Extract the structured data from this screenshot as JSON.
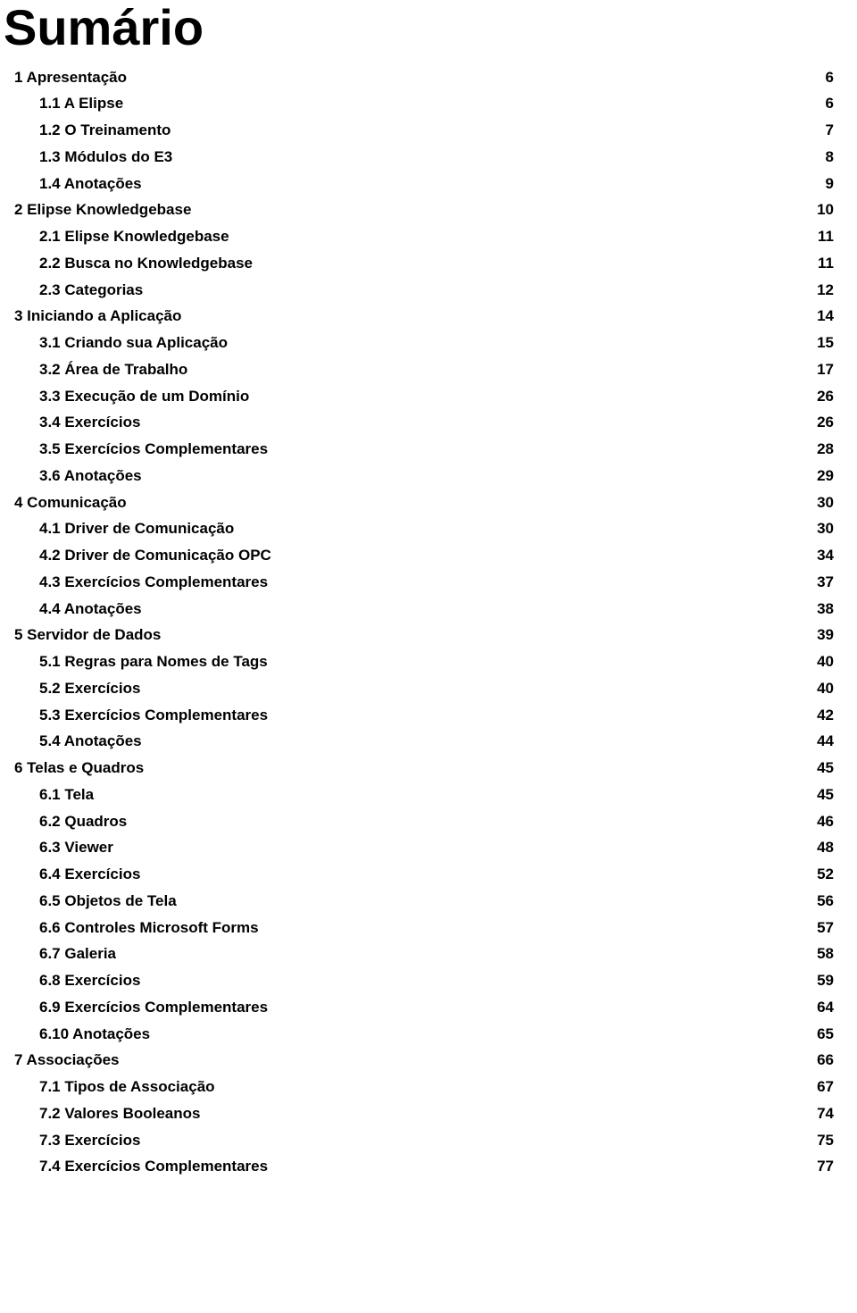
{
  "title": "Sumário",
  "title_fontsize": 56,
  "toc_fontsize": 17,
  "background_color": "#ffffff",
  "text_color": "#000000",
  "entries": [
    {
      "level": 0,
      "label": "1 Apresentação",
      "page": "6"
    },
    {
      "level": 1,
      "label": "1.1 A Elipse",
      "page": "6"
    },
    {
      "level": 1,
      "label": "1.2 O Treinamento",
      "page": "7"
    },
    {
      "level": 1,
      "label": "1.3 Módulos do E3",
      "page": "8"
    },
    {
      "level": 1,
      "label": "1.4 Anotações",
      "page": "9"
    },
    {
      "level": 0,
      "label": "2 Elipse Knowledgebase",
      "page": "10"
    },
    {
      "level": 1,
      "label": "2.1 Elipse Knowledgebase",
      "page": "11"
    },
    {
      "level": 1,
      "label": "2.2 Busca no Knowledgebase",
      "page": "11"
    },
    {
      "level": 1,
      "label": "2.3 Categorias",
      "page": "12"
    },
    {
      "level": 0,
      "label": "3 Iniciando a Aplicação",
      "page": "14"
    },
    {
      "level": 1,
      "label": "3.1 Criando sua Aplicação",
      "page": "15"
    },
    {
      "level": 1,
      "label": "3.2 Área de Trabalho",
      "page": "17"
    },
    {
      "level": 1,
      "label": "3.3 Execução de um Domínio",
      "page": "26"
    },
    {
      "level": 1,
      "label": "3.4 Exercícios",
      "page": "26"
    },
    {
      "level": 1,
      "label": "3.5 Exercícios Complementares",
      "page": "28"
    },
    {
      "level": 1,
      "label": "3.6 Anotações",
      "page": "29"
    },
    {
      "level": 0,
      "label": "4 Comunicação",
      "page": "30"
    },
    {
      "level": 1,
      "label": "4.1 Driver de Comunicação",
      "page": "30"
    },
    {
      "level": 1,
      "label": "4.2 Driver de Comunicação OPC",
      "page": "34"
    },
    {
      "level": 1,
      "label": "4.3 Exercícios Complementares",
      "page": "37"
    },
    {
      "level": 1,
      "label": "4.4 Anotações",
      "page": "38"
    },
    {
      "level": 0,
      "label": "5 Servidor de Dados",
      "page": "39"
    },
    {
      "level": 1,
      "label": "5.1 Regras para Nomes de Tags",
      "page": "40"
    },
    {
      "level": 1,
      "label": "5.2 Exercícios",
      "page": "40"
    },
    {
      "level": 1,
      "label": "5.3 Exercícios Complementares",
      "page": "42"
    },
    {
      "level": 1,
      "label": "5.4 Anotações",
      "page": "44"
    },
    {
      "level": 0,
      "label": "6 Telas e Quadros",
      "page": "45"
    },
    {
      "level": 1,
      "label": "6.1 Tela",
      "page": "45"
    },
    {
      "level": 1,
      "label": "6.2 Quadros",
      "page": "46"
    },
    {
      "level": 1,
      "label": "6.3 Viewer",
      "page": "48"
    },
    {
      "level": 1,
      "label": "6.4 Exercícios",
      "page": "52"
    },
    {
      "level": 1,
      "label": "6.5 Objetos de Tela",
      "page": "56"
    },
    {
      "level": 1,
      "label": "6.6 Controles Microsoft Forms",
      "page": "57"
    },
    {
      "level": 1,
      "label": "6.7 Galeria",
      "page": "58"
    },
    {
      "level": 1,
      "label": "6.8 Exercícios",
      "page": "59"
    },
    {
      "level": 1,
      "label": "6.9 Exercícios Complementares",
      "page": "64"
    },
    {
      "level": 1,
      "label": "6.10 Anotações",
      "page": "65"
    },
    {
      "level": 0,
      "label": "7 Associações",
      "page": "66"
    },
    {
      "level": 1,
      "label": "7.1 Tipos de Associação",
      "page": "67"
    },
    {
      "level": 1,
      "label": "7.2 Valores Booleanos",
      "page": "74"
    },
    {
      "level": 1,
      "label": "7.3 Exercícios",
      "page": "75"
    },
    {
      "level": 1,
      "label": "7.4 Exercícios Complementares",
      "page": "77"
    }
  ]
}
